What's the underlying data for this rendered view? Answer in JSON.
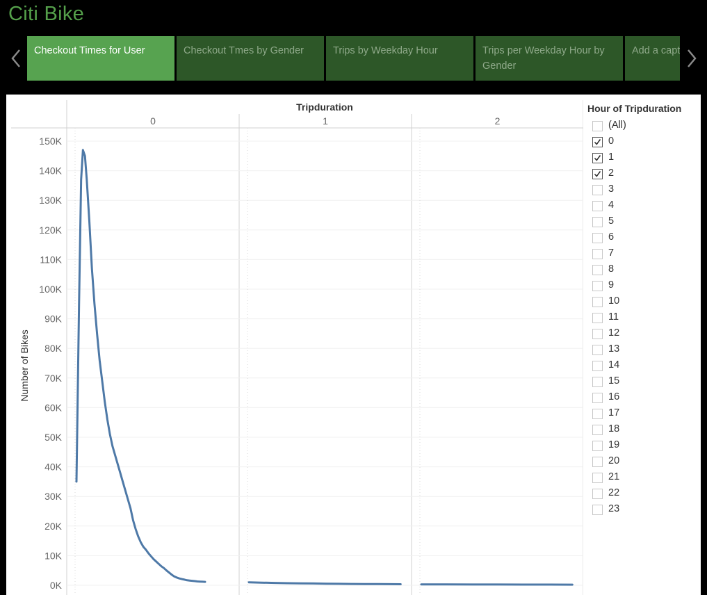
{
  "app": {
    "title": "Citi Bike"
  },
  "story_nav": {
    "prev_icon": "chevron-left-icon",
    "next_icon": "chevron-right-icon",
    "tabs": [
      {
        "label": "Checkout Times for User",
        "active": true
      },
      {
        "label": "Checkout Tmes by Gender",
        "active": false
      },
      {
        "label": "Trips by Weekday Hour",
        "active": false
      },
      {
        "label": "Trips per Weekday Hour by Gender",
        "active": false
      },
      {
        "label": "Add a caption",
        "active": false
      }
    ]
  },
  "colors": {
    "title": "#55a04b",
    "active_tab": "#57a350",
    "inactive_tab": "#2d5728",
    "line": "#4e79a7"
  },
  "filter": {
    "title": "Hour of Tripduration",
    "items": [
      {
        "label": "(All)",
        "checked": false
      },
      {
        "label": "0",
        "checked": true
      },
      {
        "label": "1",
        "checked": true
      },
      {
        "label": "2",
        "checked": true
      },
      {
        "label": "3",
        "checked": false
      },
      {
        "label": "4",
        "checked": false
      },
      {
        "label": "5",
        "checked": false
      },
      {
        "label": "6",
        "checked": false
      },
      {
        "label": "7",
        "checked": false
      },
      {
        "label": "8",
        "checked": false
      },
      {
        "label": "9",
        "checked": false
      },
      {
        "label": "10",
        "checked": false
      },
      {
        "label": "11",
        "checked": false
      },
      {
        "label": "12",
        "checked": false
      },
      {
        "label": "13",
        "checked": false
      },
      {
        "label": "14",
        "checked": false
      },
      {
        "label": "15",
        "checked": false
      },
      {
        "label": "16",
        "checked": false
      },
      {
        "label": "17",
        "checked": false
      },
      {
        "label": "18",
        "checked": false
      },
      {
        "label": "19",
        "checked": false
      },
      {
        "label": "20",
        "checked": false
      },
      {
        "label": "21",
        "checked": false
      },
      {
        "label": "22",
        "checked": false
      },
      {
        "label": "23",
        "checked": false
      }
    ]
  },
  "chart_data": {
    "type": "line",
    "column_header": "Tripduration",
    "panels": [
      "0",
      "1",
      "2"
    ],
    "ylabel": "Number of Bikes",
    "ylim": [
      0,
      150000
    ],
    "y_ticks": [
      "150K",
      "140K",
      "130K",
      "120K",
      "110K",
      "100K",
      "90K",
      "80K",
      "70K",
      "60K",
      "50K",
      "40K",
      "30K",
      "20K",
      "10K",
      "0K"
    ],
    "y_tick_values": [
      150000,
      140000,
      130000,
      120000,
      110000,
      100000,
      90000,
      80000,
      70000,
      60000,
      50000,
      40000,
      30000,
      20000,
      10000,
      0
    ],
    "xlim": [
      0,
      60
    ],
    "grid": true,
    "series": [
      {
        "panel": "0",
        "points": [
          [
            0,
            35000
          ],
          [
            1,
            95000
          ],
          [
            1.8,
            137000
          ],
          [
            2.5,
            147000
          ],
          [
            3.3,
            145000
          ],
          [
            4,
            137000
          ],
          [
            5,
            123000
          ],
          [
            6,
            107000
          ],
          [
            7,
            95000
          ],
          [
            8,
            85000
          ],
          [
            9,
            76000
          ],
          [
            10,
            69000
          ],
          [
            11,
            62000
          ],
          [
            12,
            56000
          ],
          [
            13,
            51000
          ],
          [
            14,
            47000
          ],
          [
            15,
            44000
          ],
          [
            16,
            41000
          ],
          [
            17,
            38000
          ],
          [
            18,
            35000
          ],
          [
            19,
            32000
          ],
          [
            20,
            29000
          ],
          [
            21,
            26000
          ],
          [
            22,
            22000
          ],
          [
            23,
            19000
          ],
          [
            24,
            16500
          ],
          [
            25,
            14500
          ],
          [
            26,
            13000
          ],
          [
            27,
            12000
          ],
          [
            28,
            10800
          ],
          [
            29,
            9800
          ],
          [
            30,
            8800
          ],
          [
            31,
            8000
          ],
          [
            32,
            7200
          ],
          [
            33,
            6400
          ],
          [
            34,
            5800
          ],
          [
            35,
            5000
          ],
          [
            36,
            4300
          ],
          [
            37,
            3600
          ],
          [
            38,
            3000
          ],
          [
            39,
            2600
          ],
          [
            40,
            2300
          ],
          [
            41,
            2100
          ],
          [
            42,
            1900
          ],
          [
            43,
            1700
          ],
          [
            44,
            1600
          ],
          [
            45,
            1500
          ],
          [
            46,
            1400
          ],
          [
            47,
            1300
          ],
          [
            48,
            1250
          ],
          [
            49,
            1200
          ],
          [
            50,
            1150
          ]
        ]
      },
      {
        "panel": "1",
        "points": [
          [
            0,
            1000
          ],
          [
            5,
            900
          ],
          [
            10,
            800
          ],
          [
            15,
            700
          ],
          [
            20,
            650
          ],
          [
            25,
            600
          ],
          [
            30,
            550
          ],
          [
            35,
            500
          ],
          [
            40,
            450
          ],
          [
            45,
            420
          ],
          [
            50,
            400
          ],
          [
            55,
            380
          ],
          [
            59,
            350
          ]
        ]
      },
      {
        "panel": "2",
        "points": [
          [
            0,
            300
          ],
          [
            10,
            280
          ],
          [
            20,
            260
          ],
          [
            30,
            250
          ],
          [
            40,
            240
          ],
          [
            50,
            230
          ],
          [
            59,
            220
          ]
        ]
      }
    ]
  }
}
